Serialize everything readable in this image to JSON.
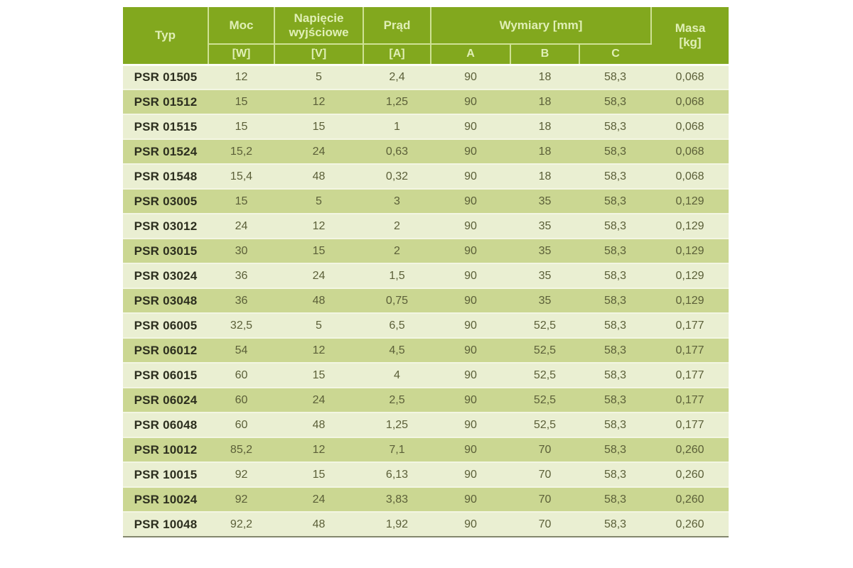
{
  "page": {
    "background_color": "#ffffff"
  },
  "colors": {
    "header_green": "#82a81e",
    "header_text": "#e0efb6",
    "header_divider": "#cfe195",
    "row_light": "#eaefd2",
    "row_dark": "#cbd792",
    "row_separator": "#f3f6e3",
    "type_text": "#2c2e1e",
    "value_text": "#5b5f38",
    "table_bottom_border": "#83876d"
  },
  "table": {
    "header": {
      "typ": "Typ",
      "moc": "Moc",
      "moc_unit": "[W]",
      "napiecie_line1": "Napięcie",
      "napiecie_line2": "wyjściowe",
      "napiecie_unit": "[V]",
      "prad": "Prąd",
      "prad_unit": "[A]",
      "wymiary": "Wymiary [mm]",
      "dim_a": "A",
      "dim_b": "B",
      "dim_c": "C",
      "masa_line1": "Masa",
      "masa_line2": "[kg]"
    }
  },
  "chart_data": {
    "type": "table",
    "title": "",
    "columns": [
      "Typ",
      "Moc [W]",
      "Napięcie wyjściowe [V]",
      "Prąd [A]",
      "Wymiary A [mm]",
      "Wymiary B [mm]",
      "Wymiary C [mm]",
      "Masa [kg]"
    ],
    "rows": [
      [
        "PSR 01505",
        "12",
        "5",
        "2,4",
        "90",
        "18",
        "58,3",
        "0,068"
      ],
      [
        "PSR 01512",
        "15",
        "12",
        "1,25",
        "90",
        "18",
        "58,3",
        "0,068"
      ],
      [
        "PSR 01515",
        "15",
        "15",
        "1",
        "90",
        "18",
        "58,3",
        "0,068"
      ],
      [
        "PSR 01524",
        "15,2",
        "24",
        "0,63",
        "90",
        "18",
        "58,3",
        "0,068"
      ],
      [
        "PSR 01548",
        "15,4",
        "48",
        "0,32",
        "90",
        "18",
        "58,3",
        "0,068"
      ],
      [
        "PSR 03005",
        "15",
        "5",
        "3",
        "90",
        "35",
        "58,3",
        "0,129"
      ],
      [
        "PSR 03012",
        "24",
        "12",
        "2",
        "90",
        "35",
        "58,3",
        "0,129"
      ],
      [
        "PSR 03015",
        "30",
        "15",
        "2",
        "90",
        "35",
        "58,3",
        "0,129"
      ],
      [
        "PSR 03024",
        "36",
        "24",
        "1,5",
        "90",
        "35",
        "58,3",
        "0,129"
      ],
      [
        "PSR 03048",
        "36",
        "48",
        "0,75",
        "90",
        "35",
        "58,3",
        "0,129"
      ],
      [
        "PSR 06005",
        "32,5",
        "5",
        "6,5",
        "90",
        "52,5",
        "58,3",
        "0,177"
      ],
      [
        "PSR 06012",
        "54",
        "12",
        "4,5",
        "90",
        "52,5",
        "58,3",
        "0,177"
      ],
      [
        "PSR 06015",
        "60",
        "15",
        "4",
        "90",
        "52,5",
        "58,3",
        "0,177"
      ],
      [
        "PSR 06024",
        "60",
        "24",
        "2,5",
        "90",
        "52,5",
        "58,3",
        "0,177"
      ],
      [
        "PSR 06048",
        "60",
        "48",
        "1,25",
        "90",
        "52,5",
        "58,3",
        "0,177"
      ],
      [
        "PSR 10012",
        "85,2",
        "12",
        "7,1",
        "90",
        "70",
        "58,3",
        "0,260"
      ],
      [
        "PSR 10015",
        "92",
        "15",
        "6,13",
        "90",
        "70",
        "58,3",
        "0,260"
      ],
      [
        "PSR 10024",
        "92",
        "24",
        "3,83",
        "90",
        "70",
        "58,3",
        "0,260"
      ],
      [
        "PSR 10048",
        "92,2",
        "48",
        "1,92",
        "90",
        "70",
        "58,3",
        "0,260"
      ]
    ]
  }
}
